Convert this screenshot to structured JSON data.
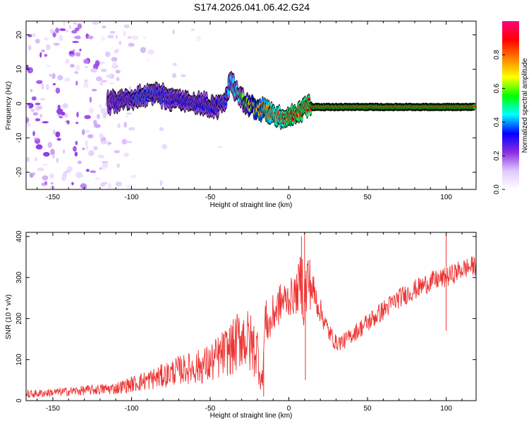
{
  "page_title": "S174.2026.041.06.42.G24",
  "chart_data": [
    {
      "type": "heatmap",
      "title": "S174.2026.041.06.42.G24",
      "xlabel": "Height of straight line (km)",
      "ylabel": "Frequency (Hz)",
      "xlim": [
        -167,
        119
      ],
      "ylim": [
        -25,
        24
      ],
      "xticks": [
        -150,
        -100,
        -50,
        0,
        50,
        100
      ],
      "yticks": [
        -20,
        -10,
        0,
        10,
        20
      ],
      "colorbar": {
        "label": "Normalized spectral amplitude",
        "range": [
          0,
          1
        ],
        "ticks": [
          0.0,
          0.2,
          0.4,
          0.6,
          0.8
        ],
        "colors": [
          "#ffffff",
          "#e0c8ff",
          "#8a2be2",
          "#0000ff",
          "#00ffff",
          "#00ff00",
          "#ffff00",
          "#ff8000",
          "#ff0000",
          "#ff0080"
        ]
      },
      "ridge": {
        "x": [
          -115,
          -105,
          -95,
          -85,
          -75,
          -65,
          -55,
          -45,
          -40,
          -37,
          -33,
          -28,
          -22,
          -16,
          -10,
          -5,
          0,
          5,
          10,
          13,
          15,
          30,
          50,
          70,
          90,
          110,
          118
        ],
        "y": [
          0,
          1,
          2,
          3,
          1.5,
          1,
          0,
          -1,
          1,
          7,
          3,
          0,
          -1,
          -2,
          -3,
          -4.5,
          -4,
          -3,
          -1,
          0,
          -1,
          -1,
          -1,
          -1,
          -1,
          -1,
          -1
        ],
        "amplitude": [
          0.25,
          0.3,
          0.35,
          0.35,
          0.3,
          0.3,
          0.3,
          0.3,
          0.35,
          0.4,
          0.45,
          0.6,
          0.7,
          0.75,
          0.8,
          0.8,
          0.85,
          0.85,
          0.85,
          0.85,
          0.9,
          0.9,
          0.9,
          0.9,
          0.9,
          0.9,
          0.9
        ]
      },
      "noise_region_x": [
        -167,
        -100
      ]
    },
    {
      "type": "line",
      "title": "",
      "xlabel": "Height of straight line (km)",
      "ylabel": "SNR (10 * v/v)",
      "xlim": [
        -167,
        119
      ],
      "ylim": [
        0,
        410
      ],
      "xticks": [
        -150,
        -100,
        -50,
        0,
        50,
        100
      ],
      "yticks": [
        0,
        100,
        200,
        300,
        400
      ],
      "series": [
        {
          "name": "SNR",
          "color": "#ee3333",
          "x": [
            -167,
            -150,
            -130,
            -110,
            -100,
            -90,
            -80,
            -70,
            -60,
            -50,
            -40,
            -35,
            -30,
            -25,
            -20,
            -17,
            -15,
            -12,
            -10,
            -5,
            0,
            5,
            8,
            10,
            12,
            15,
            20,
            25,
            30,
            35,
            40,
            50,
            60,
            70,
            80,
            90,
            100,
            110,
            119
          ],
          "values": [
            15,
            20,
            25,
            30,
            40,
            50,
            60,
            75,
            80,
            90,
            120,
            130,
            160,
            140,
            120,
            40,
            200,
            180,
            210,
            240,
            250,
            260,
            300,
            240,
            300,
            270,
            220,
            170,
            140,
            145,
            160,
            190,
            220,
            250,
            270,
            290,
            300,
            320,
            330
          ],
          "spread": [
            10,
            10,
            12,
            15,
            20,
            25,
            30,
            35,
            40,
            50,
            60,
            70,
            80,
            80,
            70,
            30,
            50,
            50,
            50,
            50,
            45,
            50,
            80,
            100,
            80,
            50,
            30,
            25,
            20,
            20,
            20,
            25,
            25,
            25,
            25,
            25,
            25,
            25,
            25
          ],
          "spikes": [
            {
              "x": 8,
              "value": 400
            },
            {
              "x": 10,
              "value": 410
            },
            {
              "x": 10.5,
              "value": 50
            },
            {
              "x": -16,
              "value": 10
            },
            {
              "x": 100,
              "value": 170
            },
            {
              "x": 100,
              "value": 410
            }
          ]
        }
      ]
    }
  ]
}
